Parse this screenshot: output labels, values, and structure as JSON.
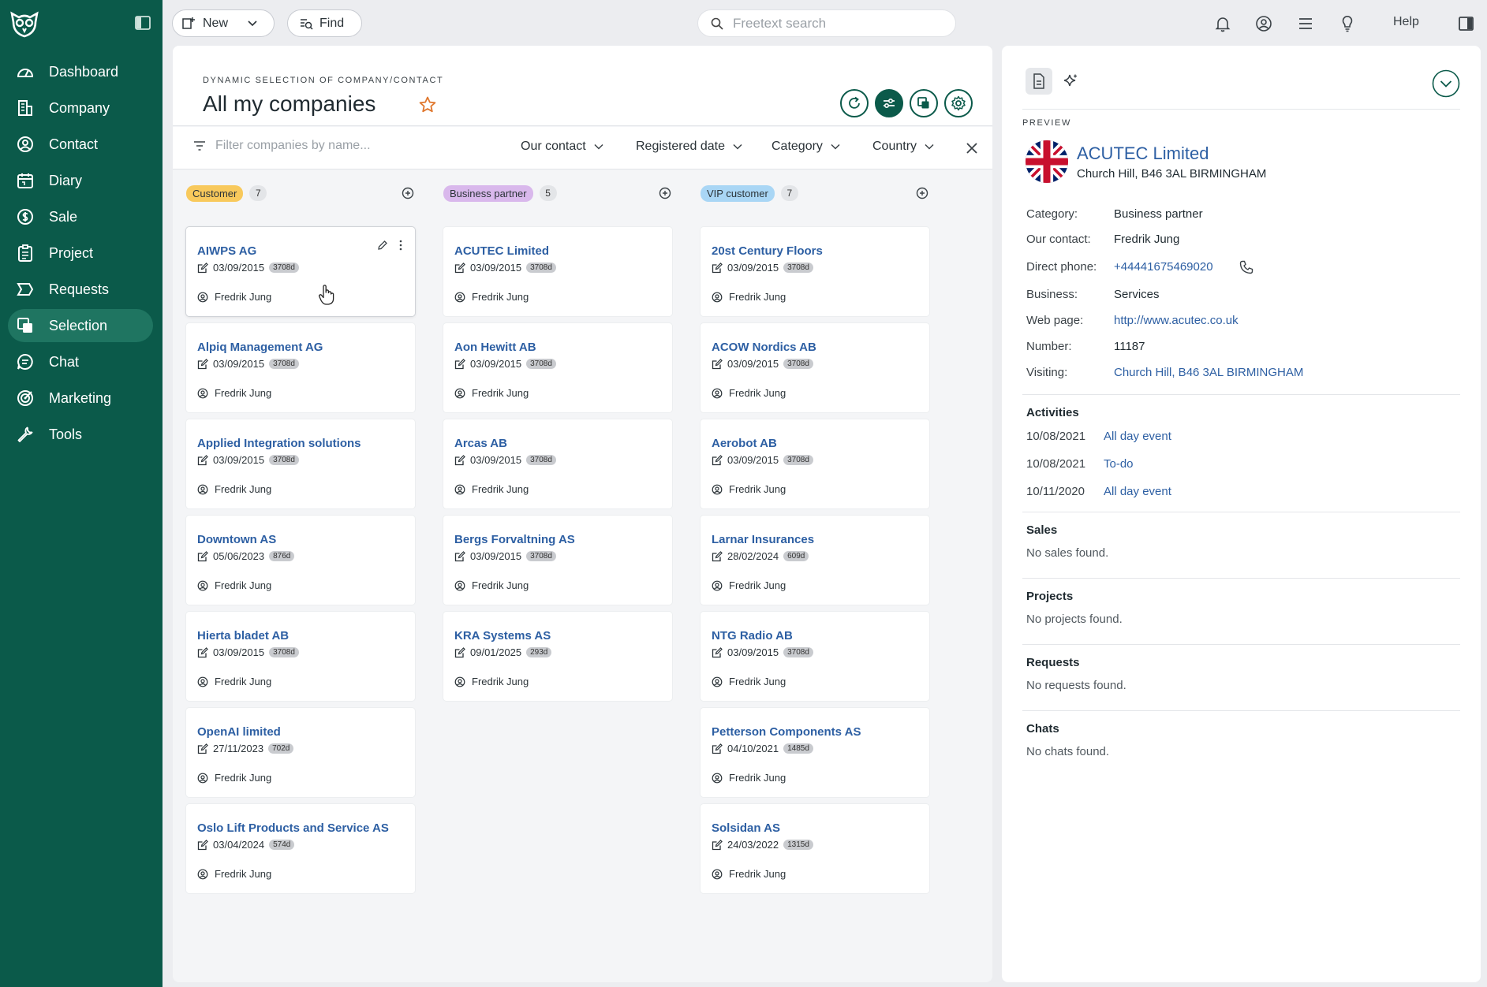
{
  "sidebar": {
    "items": [
      {
        "label": "Dashboard",
        "icon": "dashboard-icon"
      },
      {
        "label": "Company",
        "icon": "company-icon"
      },
      {
        "label": "Contact",
        "icon": "contact-icon"
      },
      {
        "label": "Diary",
        "icon": "diary-icon"
      },
      {
        "label": "Sale",
        "icon": "sale-icon"
      },
      {
        "label": "Project",
        "icon": "project-icon"
      },
      {
        "label": "Requests",
        "icon": "requests-icon"
      },
      {
        "label": "Selection",
        "icon": "selection-icon",
        "active": true
      },
      {
        "label": "Chat",
        "icon": "chat-icon"
      },
      {
        "label": "Marketing",
        "icon": "marketing-icon"
      },
      {
        "label": "Tools",
        "icon": "tools-icon"
      }
    ]
  },
  "topbar": {
    "new_label": "New",
    "find_label": "Find",
    "search_placeholder": "Freetext search",
    "help_label": "Help"
  },
  "main": {
    "eyebrow": "DYNAMIC SELECTION OF COMPANY/CONTACT",
    "title": "All my companies",
    "filter_placeholder": "Filter companies by name...",
    "filters": [
      "Our contact",
      "Registered date",
      "Category",
      "Country"
    ]
  },
  "columns": [
    {
      "tag": "Customer",
      "color": "#f8c95c",
      "count": "7",
      "cards": [
        {
          "name": "AIWPS AG",
          "date": "03/09/2015",
          "days": "3708d",
          "contact": "Fredrik Jung"
        },
        {
          "name": "Alpiq Management AG",
          "date": "03/09/2015",
          "days": "3708d",
          "contact": "Fredrik Jung"
        },
        {
          "name": "Applied Integration solutions",
          "date": "03/09/2015",
          "days": "3708d",
          "contact": "Fredrik Jung"
        },
        {
          "name": "Downtown AS",
          "date": "05/06/2023",
          "days": "876d",
          "contact": "Fredrik Jung"
        },
        {
          "name": "Hierta bladet AB",
          "date": "03/09/2015",
          "days": "3708d",
          "contact": "Fredrik Jung"
        },
        {
          "name": "OpenAI limited",
          "date": "27/11/2023",
          "days": "702d",
          "contact": "Fredrik Jung"
        },
        {
          "name": "Oslo Lift Products and Service AS",
          "date": "03/04/2024",
          "days": "574d",
          "contact": "Fredrik Jung"
        }
      ]
    },
    {
      "tag": "Business partner",
      "color": "#d9b8ec",
      "count": "5",
      "cards": [
        {
          "name": "ACUTEC Limited",
          "date": "03/09/2015",
          "days": "3708d",
          "contact": "Fredrik Jung"
        },
        {
          "name": "Aon Hewitt AB",
          "date": "03/09/2015",
          "days": "3708d",
          "contact": "Fredrik Jung"
        },
        {
          "name": "Arcas AB",
          "date": "03/09/2015",
          "days": "3708d",
          "contact": "Fredrik Jung"
        },
        {
          "name": "Bergs Forvaltning AS",
          "date": "03/09/2015",
          "days": "3708d",
          "contact": "Fredrik Jung"
        },
        {
          "name": "KRA Systems AS",
          "date": "09/01/2025",
          "days": "293d",
          "contact": "Fredrik Jung"
        }
      ]
    },
    {
      "tag": "VIP customer",
      "color": "#a9d6f5",
      "count": "7",
      "cards": [
        {
          "name": "20st Century Floors",
          "date": "03/09/2015",
          "days": "3708d",
          "contact": "Fredrik Jung"
        },
        {
          "name": "ACOW Nordics AB",
          "date": "03/09/2015",
          "days": "3708d",
          "contact": "Fredrik Jung"
        },
        {
          "name": "Aerobot AB",
          "date": "03/09/2015",
          "days": "3708d",
          "contact": "Fredrik Jung"
        },
        {
          "name": "Larnar Insurances",
          "date": "28/02/2024",
          "days": "609d",
          "contact": "Fredrik Jung"
        },
        {
          "name": "NTG Radio AB",
          "date": "03/09/2015",
          "days": "3708d",
          "contact": "Fredrik Jung"
        },
        {
          "name": "Petterson Components AS",
          "date": "04/10/2021",
          "days": "1485d",
          "contact": "Fredrik Jung"
        },
        {
          "name": "Solsidan AS",
          "date": "24/03/2022",
          "days": "1315d",
          "contact": "Fredrik Jung"
        }
      ]
    }
  ],
  "preview": {
    "label": "PREVIEW",
    "company_name": "ACUTEC Limited",
    "address": "Church Hill, B46 3AL BIRMINGHAM",
    "fields": [
      {
        "label": "Category:",
        "value": "Business partner",
        "link": false
      },
      {
        "label": "Our contact:",
        "value": "Fredrik Jung",
        "link": false
      },
      {
        "label": "Direct phone:",
        "value": "+44441675469020",
        "link": true
      },
      {
        "label": "Business:",
        "value": "Services",
        "link": false
      },
      {
        "label": "Web page:",
        "value": "http://www.acutec.co.uk",
        "link": true
      },
      {
        "label": "Number:",
        "value": "11187",
        "link": false
      },
      {
        "label": "Visiting:",
        "value": "Church Hill, B46 3AL BIRMINGHAM",
        "link": true
      }
    ],
    "activities_title": "Activities",
    "activities": [
      {
        "date": "10/08/2021",
        "type": "All day event"
      },
      {
        "date": "10/08/2021",
        "type": "To-do"
      },
      {
        "date": "10/11/2020",
        "type": "All day event"
      }
    ],
    "sales_title": "Sales",
    "sales_empty": "No sales found.",
    "projects_title": "Projects",
    "projects_empty": "No projects found.",
    "requests_title": "Requests",
    "requests_empty": "No requests found.",
    "chats_title": "Chats",
    "chats_empty": "No chats found."
  }
}
